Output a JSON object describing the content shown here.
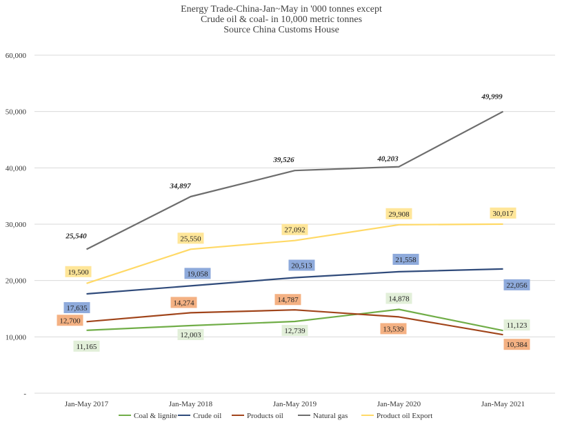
{
  "chart_data": {
    "type": "line",
    "title": [
      "Energy Trade-China-Jan~May in '000 tonnes except",
      "Crude oil & coal-  in 10,000 metric tonnes",
      "Source China Customs House"
    ],
    "categories": [
      "Jan-May 2017",
      "Jan-May 2018",
      "Jan-May 2019",
      "Jan-May 2020",
      "Jan-May 2021"
    ],
    "ylim": [
      0,
      60000
    ],
    "yticks": [
      0,
      10000,
      20000,
      30000,
      40000,
      50000,
      60000
    ],
    "ytick_labels": [
      "-",
      "10,000",
      "20,000",
      "30,000",
      "40,000",
      "50,000",
      "60,000"
    ],
    "grid": true,
    "legend_position": "bottom",
    "series": [
      {
        "name": "Coal & lignite",
        "color": "#70ad47",
        "label_bg": "#e2efd9",
        "values": [
          11165,
          12003,
          12739,
          14878,
          11123
        ],
        "labels": [
          "11,165",
          "12,003",
          "12,739",
          "14,878",
          "11,123"
        ]
      },
      {
        "name": "Crude oil",
        "color": "#2f4a7a",
        "label_bg": "#8eaadb",
        "values": [
          17635,
          19058,
          20513,
          21558,
          22056
        ],
        "labels": [
          "17,635",
          "19,058",
          "20,513",
          "21,558",
          "22,056"
        ]
      },
      {
        "name": "Products oil",
        "color": "#a0441a",
        "label_bg": "#f4b183",
        "values": [
          12700,
          14274,
          14787,
          13539,
          10384
        ],
        "labels": [
          "12,700",
          "14,274",
          "14,787",
          "13,539",
          "10,384"
        ]
      },
      {
        "name": "Natural gas",
        "color": "#6d6d6d",
        "label_bg": "",
        "values": [
          25540,
          34897,
          39526,
          40203,
          49999
        ],
        "labels": [
          "25,540",
          "34,897",
          "39,526",
          "40,203",
          "49,999"
        ]
      },
      {
        "name": "Product oil Export",
        "color": "#ffd966",
        "label_bg": "#ffe699",
        "values": [
          19500,
          25550,
          27092,
          29908,
          30017
        ],
        "labels": [
          "19,500",
          "25,550",
          "27,092",
          "29,908",
          "30,017"
        ]
      }
    ]
  }
}
